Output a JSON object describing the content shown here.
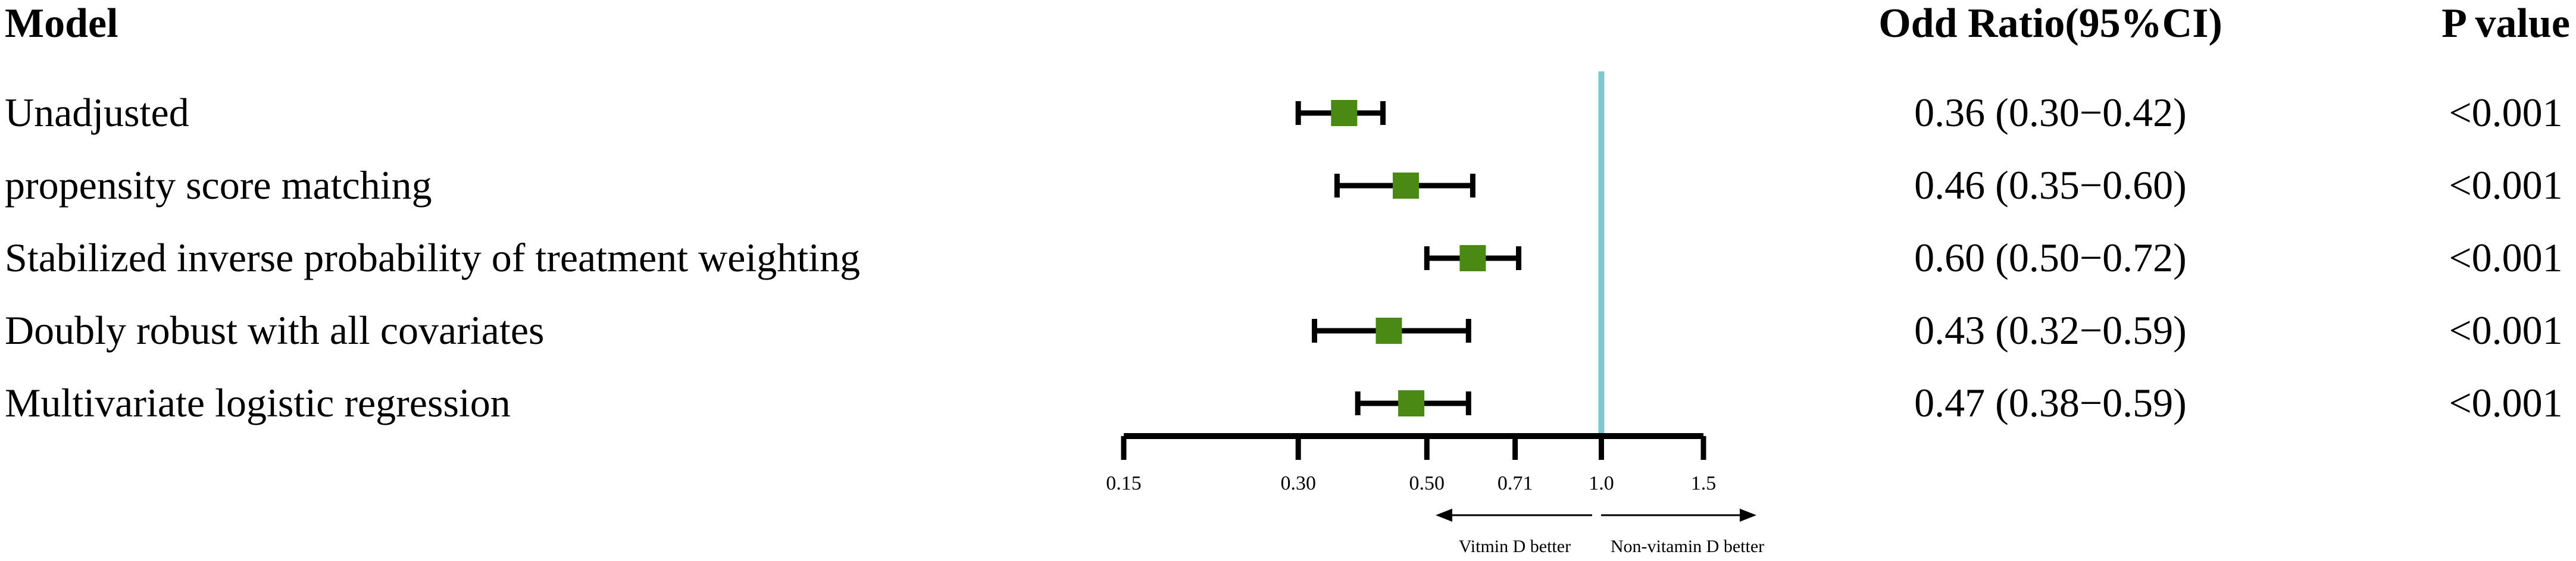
{
  "headers": {
    "model": "Model",
    "odds_ratio": "Odd Ratio(95%CI)",
    "p_value": "P value"
  },
  "direction_labels": {
    "left": "Vitmin D better",
    "right": "Non-vitamin D better"
  },
  "colors": {
    "marker": "#4a8a14",
    "ci_line": "#000000",
    "reference_line": "#7ec8cf"
  },
  "chart_data": {
    "type": "forest",
    "scale": "log",
    "x_ticks": [
      0.15,
      0.3,
      0.5,
      0.71,
      1.0,
      1.5
    ],
    "x_tick_labels": [
      "0.15",
      "0.30",
      "0.50",
      "0.71",
      "1.0",
      "1.5"
    ],
    "xlim": [
      0.15,
      1.5
    ],
    "reference_value": 1.0,
    "rows": [
      {
        "model": "Unadjusted",
        "or": 0.36,
        "lo": 0.3,
        "hi": 0.42,
        "or_text": "0.36 (0.30−0.42)",
        "p_text": "<0.001"
      },
      {
        "model": "propensity score matching",
        "or": 0.46,
        "lo": 0.35,
        "hi": 0.6,
        "or_text": "0.46 (0.35−0.60)",
        "p_text": "<0.001"
      },
      {
        "model": "Stabilized inverse probability of treatment weighting",
        "or": 0.6,
        "lo": 0.5,
        "hi": 0.72,
        "or_text": "0.60 (0.50−0.72)",
        "p_text": "<0.001"
      },
      {
        "model": "Doubly robust with all covariates",
        "or": 0.43,
        "lo": 0.32,
        "hi": 0.59,
        "or_text": "0.43 (0.32−0.59)",
        "p_text": "<0.001"
      },
      {
        "model": "Multivariate logistic regression",
        "or": 0.47,
        "lo": 0.38,
        "hi": 0.59,
        "or_text": "0.47 (0.38−0.59)",
        "p_text": "<0.001"
      }
    ]
  }
}
